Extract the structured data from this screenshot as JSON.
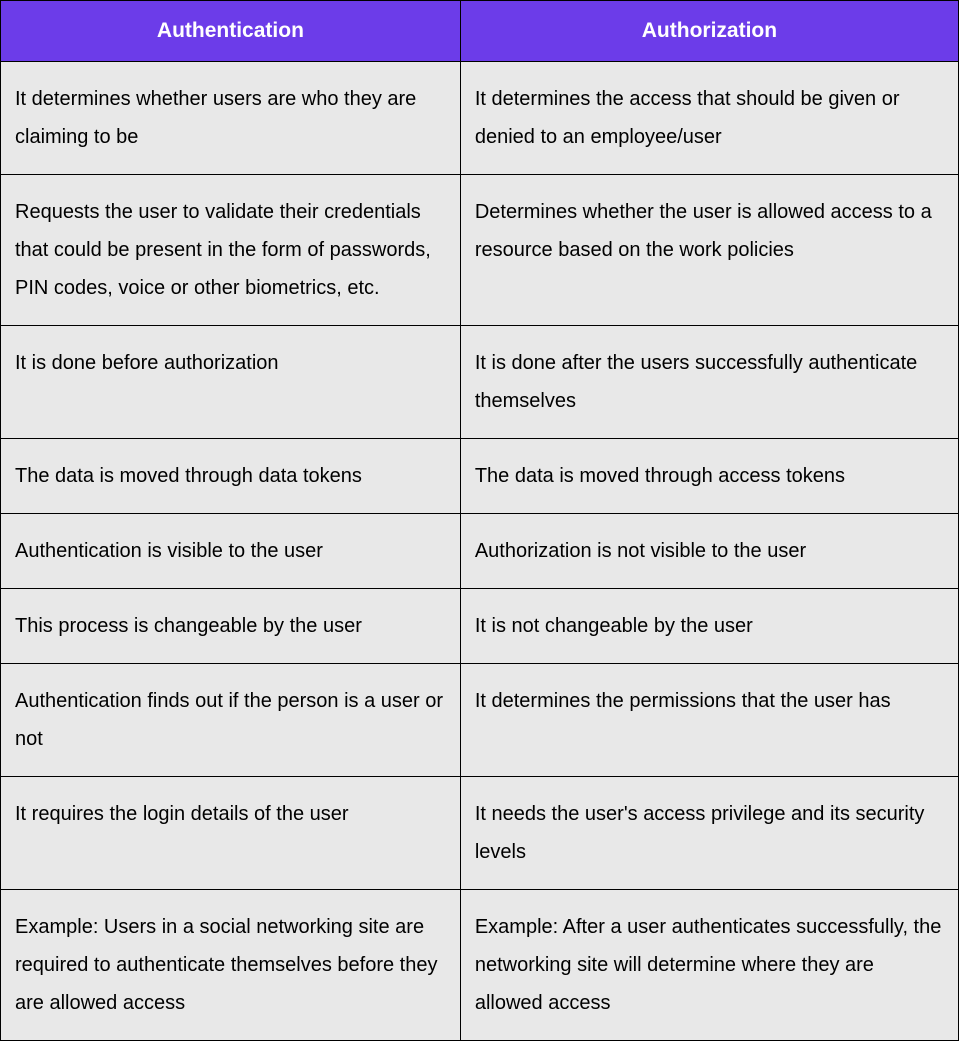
{
  "table": {
    "type": "table",
    "header_bg_color": "#6c3ce9",
    "header_text_color": "#ffffff",
    "cell_bg_color": "#e8e8e8",
    "cell_text_color": "#000000",
    "border_color": "#000000",
    "header_font_size": 21,
    "cell_font_size": 20,
    "cell_line_height": 1.9,
    "columns": [
      {
        "label": "Authentication",
        "width_pct": 48
      },
      {
        "label": "Authorization",
        "width_pct": 52
      }
    ],
    "rows": [
      {
        "left": "It determines whether users are who they are claiming to be",
        "right": "It determines the access that should be given or denied to an employee/user"
      },
      {
        "left": "Requests the user to validate their credentials that could be present in the form of passwords, PIN codes, voice or other biometrics, etc.",
        "right": "Determines whether the user is allowed access to a resource based on the work policies"
      },
      {
        "left": "It is done before authorization",
        "right": "It is done after the users successfully authenticate themselves"
      },
      {
        "left": "The data is moved through data tokens",
        "right": "The data is moved through access tokens"
      },
      {
        "left": "Authentication is visible to the user",
        "right": "Authorization is not visible to the user"
      },
      {
        "left": "This process is changeable by the user",
        "right": "It is not changeable by the user"
      },
      {
        "left": "Authentication finds out if the person is a user or not",
        "right": "It determines the permissions that the user has"
      },
      {
        "left": "It requires the login details of the user",
        "right": "It needs the user's access privilege and its security levels"
      },
      {
        "left": "Example: Users in a social networking site are required to authenticate themselves before they are allowed access",
        "right": "Example: After a user authenticates successfully, the networking site will determine where they are allowed access"
      }
    ]
  }
}
